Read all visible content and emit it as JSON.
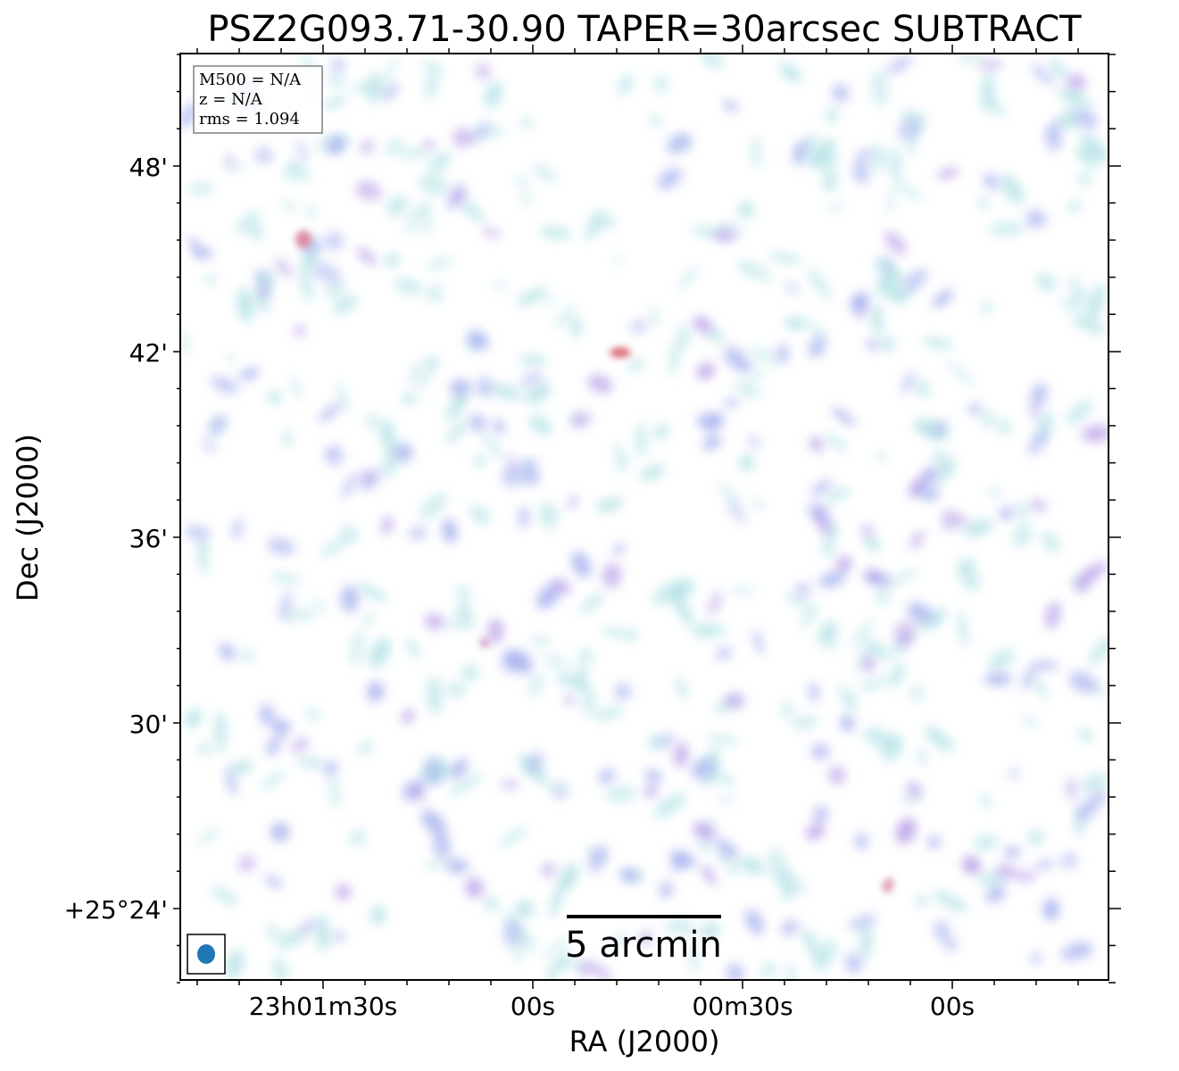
{
  "title": "PSZ2G093.71-30.90 TAPER=30arcsec SUBTRACT",
  "axes": {
    "xlabel": "RA (J2000)",
    "ylabel": "Dec (J2000)",
    "x_ticks": [
      "23h01m30s",
      "00s",
      "00m30s",
      "00s"
    ],
    "y_ticks": [
      "+25°24'",
      "30'",
      "36'",
      "42'",
      "48'"
    ]
  },
  "info_box": {
    "m500": "M500 = N/A",
    "z": "z = N/A",
    "rms": "rms = 1.094"
  },
  "scalebar": {
    "label": "5 arcmin"
  },
  "beam": {
    "color": "#1f77b4"
  },
  "colormap": {
    "low": "#b7e3e6",
    "mid": "#a9b3ef",
    "high": "#d8616e"
  }
}
